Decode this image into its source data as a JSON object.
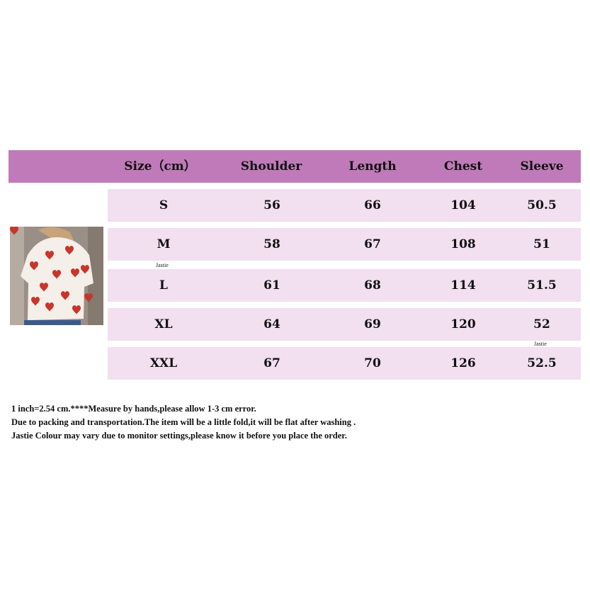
{
  "colors": {
    "header": "#c07ab9",
    "row": "#f2dff0"
  },
  "table": {
    "headers": [
      "Size（cm）",
      "Shoulder",
      "Length",
      "Chest",
      "Sleeve"
    ],
    "rows": [
      [
        "S",
        "56",
        "66",
        "104",
        "50.5"
      ],
      [
        "M",
        "58",
        "67",
        "108",
        "51"
      ],
      [
        "L",
        "61",
        "68",
        "114",
        "51.5"
      ],
      [
        "XL",
        "64",
        "69",
        "120",
        "52"
      ],
      [
        "XXL",
        "67",
        "70",
        "126",
        "52.5"
      ]
    ]
  },
  "watermark": "Jastie",
  "notes": [
    "1 inch=2.54 cm.****Measure by hands,please allow 1-3 cm error.",
    "Due to packing and transportation.The item will be a little fold,it will be flat after washing .",
    "Jastie Colour may vary due to monitor settings,please know it before you place the order."
  ]
}
